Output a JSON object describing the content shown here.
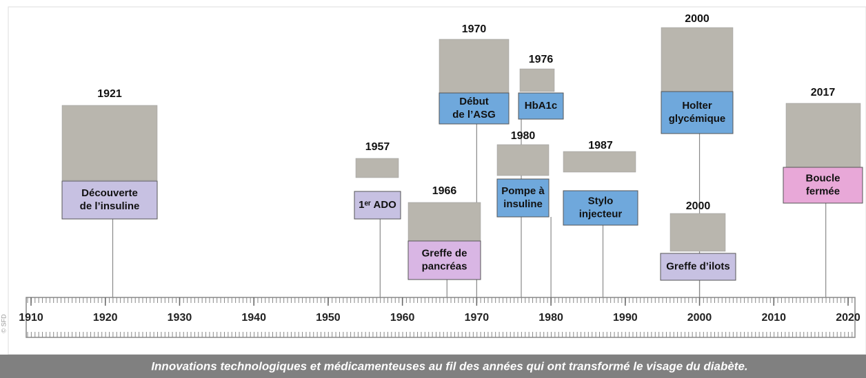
{
  "caption": "Innovations technologiques et médicamenteuses au fil des années qui ont transformé le visage du diabète.",
  "credit": "© SFD",
  "axis": {
    "ticks": [
      1910,
      1920,
      1930,
      1940,
      1950,
      1960,
      1970,
      1980,
      1990,
      2000,
      2010,
      2020
    ]
  },
  "events": [
    {
      "year": 1921,
      "label": [
        "Découverte",
        "de l’insuline"
      ]
    },
    {
      "year": 1957,
      "label": [
        "1ᵉʳ ADO"
      ]
    },
    {
      "year": 1966,
      "label": [
        "Greffe de",
        "pancréas"
      ]
    },
    {
      "year": 1970,
      "label": [
        "Début",
        "de l’ASG"
      ]
    },
    {
      "year": 1976,
      "label": [
        "HbA1c"
      ]
    },
    {
      "year": 1980,
      "label": [
        "Pompe à",
        "insuline"
      ]
    },
    {
      "year": 1987,
      "label": [
        "Stylo",
        "injecteur"
      ]
    },
    {
      "year": 2000,
      "label": [
        "Holter",
        "glycémique"
      ]
    },
    {
      "year": 2000,
      "label": [
        "Greffe d’ilots"
      ]
    },
    {
      "year": 2017,
      "label": [
        "Boucle",
        "fermée"
      ]
    }
  ]
}
